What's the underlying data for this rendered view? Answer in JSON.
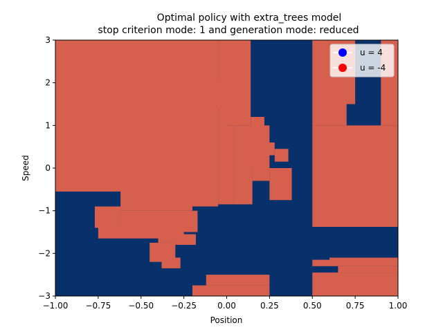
{
  "chart_data": {
    "type": "heatmap",
    "title": "Optimal policy with extra_trees model",
    "subtitle": "stop criterion mode: 1 and generation mode: reduced",
    "xlabel": "Position",
    "ylabel": "Speed",
    "xlim": [
      -1.0,
      1.0
    ],
    "ylim": [
      -3,
      3
    ],
    "x_ticks": [
      "−1.00",
      "−0.75",
      "−0.50",
      "−0.25",
      "0.00",
      "0.25",
      "0.50",
      "0.75",
      "1.00"
    ],
    "y_ticks": [
      "−3",
      "−2",
      "−1",
      "0",
      "1",
      "2",
      "3"
    ],
    "grid": false,
    "legend_position": "top-right",
    "legend": [
      {
        "label": "u = 4",
        "color": "#0000ff"
      },
      {
        "label": "u = -4",
        "color": "#ff0000"
      }
    ],
    "colors": {
      "u_pos": "#08306b",
      "u_neg": "#d6604d"
    },
    "background_action": "u = 4",
    "regions_u_neg": [
      {
        "x": [
          -1.0,
          -0.6
        ],
        "y": [
          -0.55,
          3.0
        ]
      },
      {
        "x": [
          -0.62,
          -0.2
        ],
        "y": [
          -1.0,
          3.0
        ]
      },
      {
        "x": [
          -0.2,
          -0.05
        ],
        "y": [
          -0.9,
          3.0
        ]
      },
      {
        "x": [
          -0.07,
          -0.02
        ],
        "y": [
          1.4,
          2.1
        ]
      },
      {
        "x": [
          -0.05,
          0.0
        ],
        "y": [
          -0.85,
          3.0
        ]
      },
      {
        "x": [
          0.0,
          0.04
        ],
        "y": [
          -0.85,
          1.0
        ]
      },
      {
        "x": [
          0.04,
          0.15
        ],
        "y": [
          -0.85,
          1.0
        ]
      },
      {
        "x": [
          0.15,
          0.25
        ],
        "y": [
          -0.3,
          1.0
        ]
      },
      {
        "x": [
          0.25,
          0.38
        ],
        "y": [
          -0.75,
          0.0
        ]
      },
      {
        "x": [
          0.0,
          0.14
        ],
        "y": [
          1.0,
          3.0
        ]
      },
      {
        "x": [
          0.14,
          0.22
        ],
        "y": [
          0.0,
          1.2
        ]
      },
      {
        "x": [
          0.18,
          0.28
        ],
        "y": [
          0.3,
          0.6
        ]
      },
      {
        "x": [
          0.28,
          0.36
        ],
        "y": [
          0.15,
          0.45
        ]
      },
      {
        "x": [
          -0.62,
          -0.17
        ],
        "y": [
          -1.5,
          -1.0
        ]
      },
      {
        "x": [
          -0.77,
          -0.62
        ],
        "y": [
          -1.4,
          -0.9
        ]
      },
      {
        "x": [
          -0.75,
          -0.4
        ],
        "y": [
          -1.65,
          -1.35
        ]
      },
      {
        "x": [
          -0.4,
          -0.25
        ],
        "y": [
          -1.75,
          -1.5
        ]
      },
      {
        "x": [
          -0.45,
          -0.3
        ],
        "y": [
          -2.2,
          -1.75
        ]
      },
      {
        "x": [
          -0.38,
          -0.27
        ],
        "y": [
          -2.35,
          -2.1
        ]
      },
      {
        "x": [
          -0.3,
          -0.18
        ],
        "y": [
          -1.8,
          -1.55
        ]
      },
      {
        "x": [
          -0.38,
          -0.3
        ],
        "y": [
          -1.95,
          -1.75
        ]
      },
      {
        "x": [
          0.5,
          1.0
        ],
        "y": [
          -1.38,
          1.0
        ]
      },
      {
        "x": [
          0.5,
          0.7
        ],
        "y": [
          1.0,
          3.0
        ]
      },
      {
        "x": [
          0.55,
          0.75
        ],
        "y": [
          1.5,
          3.0
        ]
      },
      {
        "x": [
          0.9,
          1.0
        ],
        "y": [
          1.0,
          3.0
        ]
      },
      {
        "x": [
          0.5,
          1.0
        ],
        "y": [
          -2.3,
          -2.1
        ]
      },
      {
        "x": [
          0.65,
          1.0
        ],
        "y": [
          -2.45,
          -2.3
        ]
      },
      {
        "x": [
          0.5,
          1.0
        ],
        "y": [
          -3.0,
          -2.45
        ]
      },
      {
        "x": [
          -0.2,
          0.25
        ],
        "y": [
          -3.0,
          -2.75
        ]
      },
      {
        "x": [
          -0.12,
          0.25
        ],
        "y": [
          -2.75,
          -2.5
        ]
      }
    ],
    "regions_u_pos": [
      {
        "x": [
          0.5,
          1.0
        ],
        "y": [
          -2.05,
          -1.38
        ]
      },
      {
        "x": [
          0.5,
          0.6
        ],
        "y": [
          -2.15,
          -2.05
        ]
      }
    ]
  }
}
